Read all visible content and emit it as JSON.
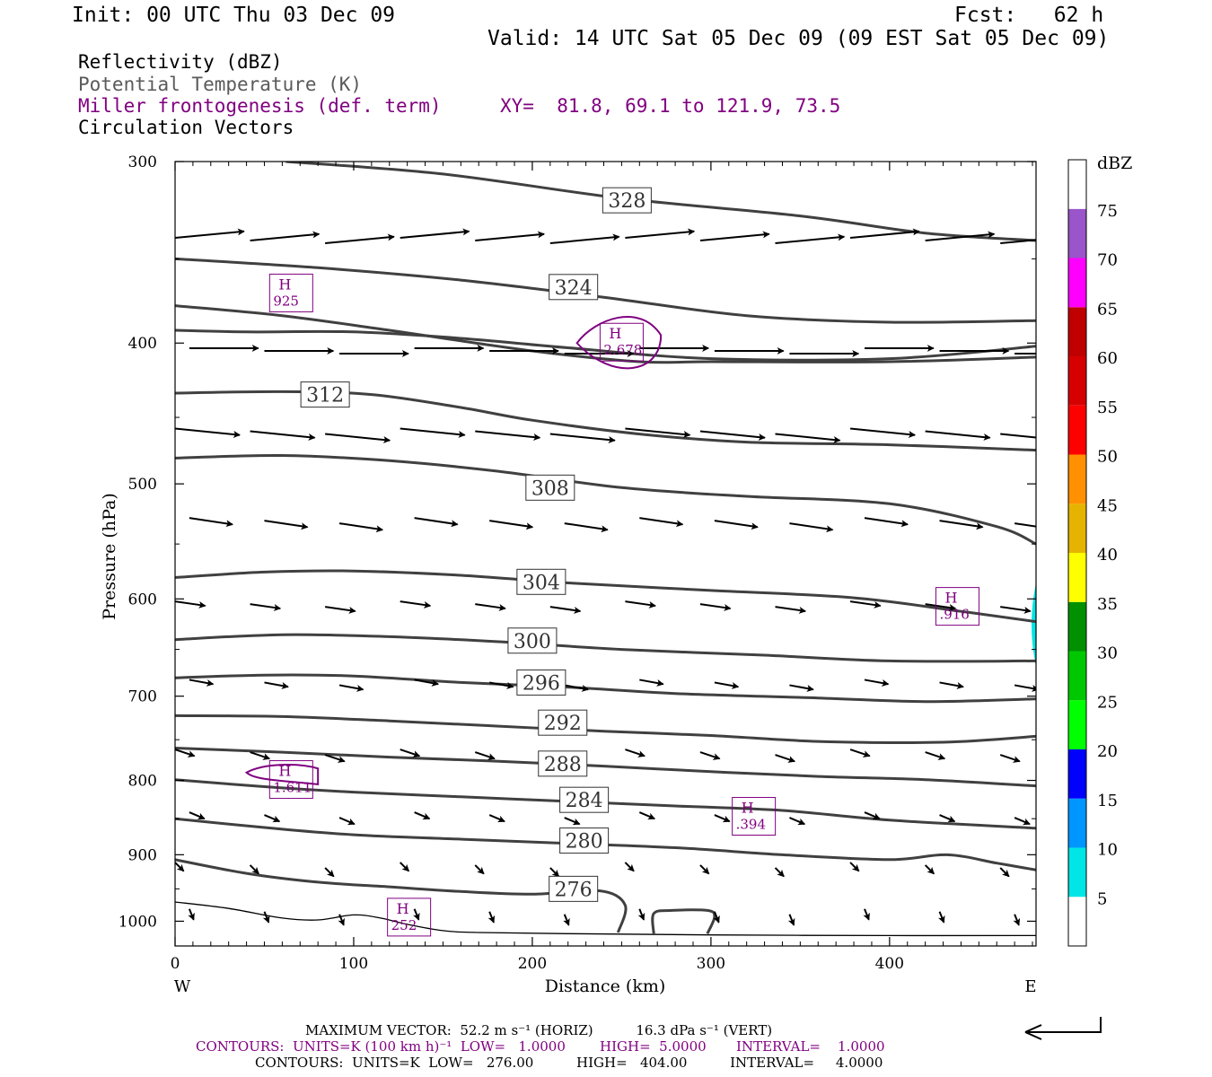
{
  "header": {
    "init": "Init: 00 UTC Thu 03 Dec 09",
    "fcst": "Fcst:   62 h",
    "valid": "Valid: 14 UTC Sat 05 Dec 09 (09 EST Sat 05 Dec 09)"
  },
  "fields": {
    "reflectivity": "Reflectivity (dBZ)",
    "theta": "Potential Temperature (K)",
    "frontogenesis": "Miller frontogenesis (def. term)",
    "xy": "XY=  81.8, 69.1 to 121.9, 73.5",
    "vectors": "Circulation Vectors"
  },
  "colors": {
    "purple": "#800080",
    "contour": "#404040",
    "cyan": "#00e5e5"
  },
  "chart_data": {
    "type": "contour",
    "xlabel": "Distance (km)",
    "ylabel": "Pressure (hPa)",
    "xlim": [
      0,
      482
    ],
    "ylim": [
      300,
      1040
    ],
    "y_log_pressure": true,
    "x_ticks": [
      "0",
      "100",
      "200",
      "300",
      "400"
    ],
    "y_ticks": [
      "300",
      "400",
      "500",
      "600",
      "700",
      "800",
      "900",
      "1000"
    ],
    "west_label": "W",
    "east_label": "E",
    "theta_contours": [
      {
        "level": "328",
        "label_at": [
          253,
          319
        ],
        "points": [
          [
            62,
            300
          ],
          [
            150,
            306
          ],
          [
            250,
            318
          ],
          [
            350,
            327
          ],
          [
            420,
            336
          ],
          [
            482,
            340
          ]
        ]
      },
      {
        "level": "324",
        "label_at": [
          223,
          366
        ],
        "points": [
          [
            0,
            350
          ],
          [
            80,
            355
          ],
          [
            160,
            362
          ],
          [
            240,
            372
          ],
          [
            320,
            383
          ],
          [
            400,
            387
          ],
          [
            482,
            386
          ]
        ]
      },
      {
        "level": "320",
        "label_at": null,
        "points": [
          [
            0,
            377
          ],
          [
            60,
            383
          ],
          [
            120,
            392
          ],
          [
            200,
            405
          ],
          [
            260,
            412
          ],
          [
            300,
            412
          ],
          [
            400,
            412
          ],
          [
            482,
            409
          ]
        ]
      },
      {
        "level": "316",
        "label_at": null,
        "points": [
          [
            0,
            392
          ],
          [
            40,
            393
          ],
          [
            100,
            393
          ],
          [
            160,
            397
          ],
          [
            220,
            403
          ],
          [
            300,
            410
          ],
          [
            400,
            410
          ],
          [
            482,
            402
          ]
        ]
      },
      {
        "level": "312",
        "label_at": [
          84,
          434
        ],
        "points": [
          [
            0,
            433
          ],
          [
            60,
            432
          ],
          [
            110,
            434
          ],
          [
            160,
            443
          ],
          [
            200,
            452
          ],
          [
            260,
            462
          ],
          [
            320,
            468
          ],
          [
            400,
            470
          ],
          [
            482,
            474
          ]
        ]
      },
      {
        "level": "308",
        "label_at": [
          210,
          503
        ],
        "points": [
          [
            0,
            480
          ],
          [
            60,
            478
          ],
          [
            120,
            482
          ],
          [
            180,
            490
          ],
          [
            250,
            503
          ],
          [
            320,
            510
          ],
          [
            400,
            516
          ],
          [
            460,
            535
          ],
          [
            482,
            550
          ]
        ]
      },
      {
        "level": "304",
        "label_at": [
          205,
          584
        ],
        "points": [
          [
            0,
            580
          ],
          [
            50,
            575
          ],
          [
            100,
            574
          ],
          [
            160,
            578
          ],
          [
            220,
            585
          ],
          [
            300,
            592
          ],
          [
            380,
            599
          ],
          [
            440,
            612
          ],
          [
            482,
            622
          ]
        ]
      },
      {
        "level": "300",
        "label_at": [
          200,
          641
        ],
        "points": [
          [
            0,
            640
          ],
          [
            60,
            635
          ],
          [
            120,
            637
          ],
          [
            180,
            642
          ],
          [
            250,
            650
          ],
          [
            330,
            656
          ],
          [
            400,
            662
          ],
          [
            482,
            662
          ]
        ]
      },
      {
        "level": "296",
        "label_at": [
          205,
          685
        ],
        "points": [
          [
            0,
            680
          ],
          [
            50,
            677
          ],
          [
            100,
            678
          ],
          [
            160,
            685
          ],
          [
            220,
            690
          ],
          [
            280,
            697
          ],
          [
            360,
            702
          ],
          [
            420,
            706
          ],
          [
            482,
            703
          ]
        ]
      },
      {
        "level": "292",
        "label_at": [
          217,
          730
        ],
        "points": [
          [
            0,
            722
          ],
          [
            60,
            723
          ],
          [
            120,
            728
          ],
          [
            180,
            734
          ],
          [
            240,
            740
          ],
          [
            300,
            745
          ],
          [
            360,
            752
          ],
          [
            430,
            753
          ],
          [
            482,
            746
          ]
        ]
      },
      {
        "level": "288",
        "label_at": [
          217,
          779
        ],
        "points": [
          [
            0,
            760
          ],
          [
            60,
            765
          ],
          [
            120,
            771
          ],
          [
            180,
            776
          ],
          [
            240,
            782
          ],
          [
            300,
            789
          ],
          [
            360,
            795
          ],
          [
            420,
            799
          ],
          [
            482,
            807
          ]
        ]
      },
      {
        "level": "284",
        "label_at": [
          229,
          825
        ],
        "points": [
          [
            0,
            799
          ],
          [
            50,
            808
          ],
          [
            100,
            815
          ],
          [
            160,
            821
          ],
          [
            220,
            827
          ],
          [
            280,
            833
          ],
          [
            340,
            839
          ],
          [
            400,
            852
          ],
          [
            482,
            863
          ]
        ]
      },
      {
        "level": "280",
        "label_at": [
          229,
          880
        ],
        "points": [
          [
            0,
            850
          ],
          [
            50,
            862
          ],
          [
            100,
            872
          ],
          [
            160,
            878
          ],
          [
            220,
            884
          ],
          [
            280,
            890
          ],
          [
            340,
            900
          ],
          [
            400,
            907
          ],
          [
            432,
            900
          ],
          [
            460,
            912
          ],
          [
            482,
            922
          ]
        ]
      },
      {
        "level": "276",
        "label_at": [
          223,
          950
        ],
        "points": [
          [
            0,
            907
          ],
          [
            40,
            927
          ],
          [
            80,
            940
          ],
          [
            120,
            947
          ],
          [
            160,
            954
          ],
          [
            200,
            958
          ],
          [
            238,
            953
          ],
          [
            252,
            975
          ],
          [
            248,
            1018
          ]
        ]
      },
      {
        "level": "276",
        "label_at": null,
        "points": [
          [
            268,
            1020
          ],
          [
            268,
            988
          ],
          [
            278,
            983
          ],
          [
            298,
            983
          ],
          [
            302,
            993
          ],
          [
            298,
            1020
          ]
        ]
      }
    ],
    "surface_line": [
      [
        0,
        970
      ],
      [
        30,
        980
      ],
      [
        60,
        995
      ],
      [
        80,
        998
      ],
      [
        100,
        990
      ],
      [
        115,
        995
      ],
      [
        130,
        1005
      ],
      [
        150,
        1015
      ],
      [
        170,
        1018
      ],
      [
        220,
        1020
      ],
      [
        300,
        1022
      ],
      [
        400,
        1023
      ],
      [
        482,
        1023
      ]
    ],
    "frontogenesis_maxima": [
      {
        "label": "H",
        "value": "925",
        "at": [
          65,
          370
        ]
      },
      {
        "label": "H",
        "value": "2.678",
        "at": [
          250,
          400
        ]
      },
      {
        "label": "H",
        "value": "1.611",
        "at": [
          65,
          800
        ]
      },
      {
        "label": "H",
        "value": ".394",
        "at": [
          324,
          848
        ]
      },
      {
        "label": "H",
        "value": ".916",
        "at": [
          438,
          608
        ]
      },
      {
        "label": "H",
        "value": "252",
        "at": [
          131,
          995
        ]
      }
    ],
    "vector_rows": [
      {
        "p": 340,
        "dx": 3.2,
        "dy": -0.3
      },
      {
        "p": 405,
        "dx": 3.2,
        "dy": 0
      },
      {
        "p": 460,
        "dx": 3.0,
        "dy": 0.3
      },
      {
        "p": 530,
        "dx": 2.0,
        "dy": 0.3
      },
      {
        "p": 605,
        "dx": 1.4,
        "dy": 0.2
      },
      {
        "p": 685,
        "dx": 1.1,
        "dy": 0.2
      },
      {
        "p": 765,
        "dx": 0.9,
        "dy": 0.3
      },
      {
        "p": 845,
        "dx": 0.7,
        "dy": 0.3
      },
      {
        "p": 915,
        "dx": 0.4,
        "dy": 0.4
      },
      {
        "p": 985,
        "dx": 0.2,
        "dy": 0.5
      }
    ],
    "colorbar": {
      "unit": "dBZ",
      "labels": [
        "5",
        "10",
        "15",
        "20",
        "25",
        "30",
        "35",
        "40",
        "45",
        "50",
        "55",
        "60",
        "65",
        "70",
        "75"
      ],
      "colors": [
        "#ffffff",
        "#00e5e5",
        "#0096ff",
        "#0000ff",
        "#00ff00",
        "#00c800",
        "#009000",
        "#ffff00",
        "#e6b400",
        "#ff9000",
        "#ff0000",
        "#d60000",
        "#c00000",
        "#ff00ff",
        "#9955c9",
        "#ffffff"
      ]
    }
  },
  "footer": {
    "max_vector": "MAXIMUM VECTOR:  52.2 m s⁻¹ (HORIZ)          16.3 dPa s⁻¹ (VERT)",
    "contours_purple": "CONTOURS:  UNITS=K (100 km h)⁻¹  LOW=   1.0000        HIGH=  5.0000       INTERVAL=    1.0000",
    "contours_black": "CONTOURS:  UNITS=K  LOW=   276.00          HIGH=   404.00          INTERVAL=     4.0000"
  }
}
